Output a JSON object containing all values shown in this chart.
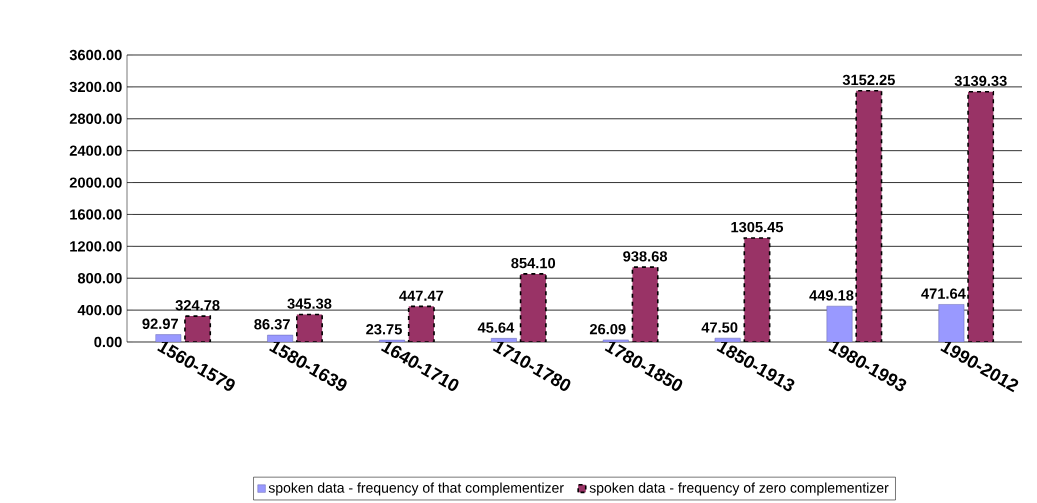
{
  "chart_data": {
    "type": "bar",
    "categories": [
      "1560-1579",
      "1580-1639",
      "1640-1710",
      "1710-1780",
      "1780-1850",
      "1850-1913",
      "1980-1993",
      "1990-2012"
    ],
    "series": [
      {
        "name": "spoken data - frequency of that complementizer",
        "color": "#9999ff",
        "values": [
          92.97,
          86.37,
          23.75,
          45.64,
          26.09,
          47.5,
          449.18,
          471.64
        ],
        "value_labels": [
          "92.97",
          "86.37",
          "23.75",
          "45.64",
          "26.09",
          "47.50",
          "449.18",
          "471.64"
        ]
      },
      {
        "name": "spoken data - frequency of zero complementizer",
        "color": "#993366",
        "line_style": "dashed",
        "values": [
          324.78,
          345.38,
          447.47,
          854.1,
          938.68,
          1305.45,
          3152.25,
          3139.33
        ],
        "value_labels": [
          "324.78",
          "345.38",
          "447.47",
          "854.10",
          "938.68",
          "1305.45",
          "3152.25",
          "3139.33"
        ]
      }
    ],
    "ylim": [
      0,
      3600
    ],
    "yticks": [
      {
        "value": 0,
        "label": "0.00"
      },
      {
        "value": 400,
        "label": "400.00"
      },
      {
        "value": 800,
        "label": "800.00"
      },
      {
        "value": 1200,
        "label": "1200.00"
      },
      {
        "value": 1600,
        "label": "1600.00"
      },
      {
        "value": 2000,
        "label": "2000.00"
      },
      {
        "value": 2400,
        "label": "2400.00"
      },
      {
        "value": 2800,
        "label": "2800.00"
      },
      {
        "value": 3200,
        "label": "3200.00"
      },
      {
        "value": 3600,
        "label": "3600.00"
      }
    ],
    "grid": "y",
    "legend": "bottom"
  }
}
